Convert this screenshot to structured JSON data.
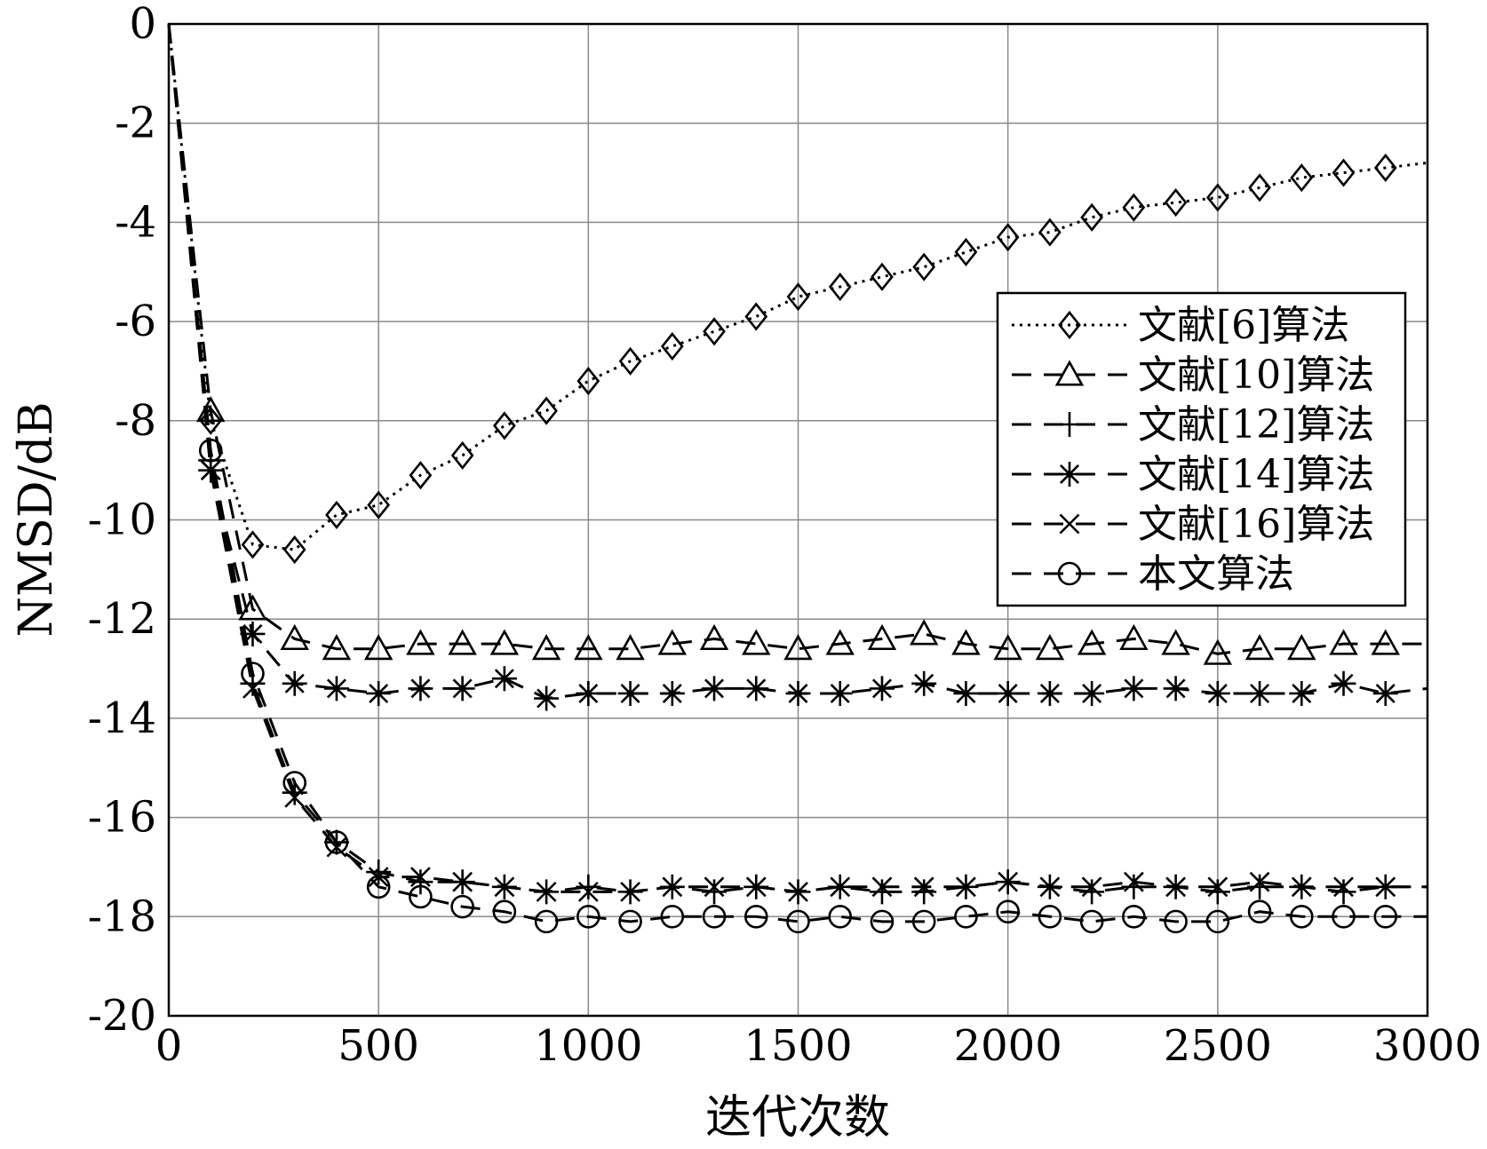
{
  "chart_data": {
    "type": "line",
    "title": "",
    "xlabel": "迭代次数",
    "ylabel": "NMSD/dB",
    "xlim": [
      0,
      3000
    ],
    "ylim": [
      -20,
      0
    ],
    "xticks": [
      0,
      500,
      1000,
      1500,
      2000,
      2500,
      3000
    ],
    "yticks": [
      0,
      -2,
      -4,
      -6,
      -8,
      -10,
      -12,
      -14,
      -16,
      -18,
      -20
    ],
    "grid": true,
    "legend_position": "right",
    "series": [
      {
        "name": "文献[6]算法",
        "style": "dotted",
        "marker": "diamond",
        "x": [
          0,
          100,
          200,
          300,
          400,
          500,
          600,
          700,
          800,
          900,
          1000,
          1100,
          1200,
          1300,
          1400,
          1500,
          1600,
          1700,
          1800,
          1900,
          2000,
          2100,
          2200,
          2300,
          2400,
          2500,
          2600,
          2700,
          2800,
          2900,
          3000
        ],
        "y": [
          0,
          -8.0,
          -10.5,
          -10.6,
          -9.9,
          -9.7,
          -9.1,
          -8.7,
          -8.1,
          -7.8,
          -7.2,
          -6.8,
          -6.5,
          -6.2,
          -5.9,
          -5.5,
          -5.3,
          -5.1,
          -4.9,
          -4.6,
          -4.3,
          -4.2,
          -3.9,
          -3.7,
          -3.6,
          -3.5,
          -3.3,
          -3.1,
          -3.0,
          -2.9,
          -2.8
        ]
      },
      {
        "name": "文献[10]算法",
        "style": "dashed",
        "marker": "triangle",
        "x": [
          0,
          100,
          200,
          300,
          400,
          500,
          600,
          700,
          800,
          900,
          1000,
          1100,
          1200,
          1300,
          1400,
          1500,
          1600,
          1700,
          1800,
          1900,
          2000,
          2100,
          2200,
          2300,
          2400,
          2500,
          2600,
          2700,
          2800,
          2900,
          3000
        ],
        "y": [
          0,
          -7.8,
          -11.8,
          -12.4,
          -12.6,
          -12.6,
          -12.5,
          -12.5,
          -12.5,
          -12.6,
          -12.6,
          -12.6,
          -12.5,
          -12.4,
          -12.5,
          -12.6,
          -12.5,
          -12.4,
          -12.3,
          -12.5,
          -12.6,
          -12.6,
          -12.5,
          -12.4,
          -12.5,
          -12.7,
          -12.6,
          -12.6,
          -12.5,
          -12.5,
          -12.5
        ]
      },
      {
        "name": "文献[12]算法",
        "style": "dashed",
        "marker": "plus",
        "x": [
          0,
          100,
          200,
          300,
          400,
          500,
          600,
          700,
          800,
          900,
          1000,
          1100,
          1200,
          1300,
          1400,
          1500,
          1600,
          1700,
          1800,
          1900,
          2000,
          2100,
          2200,
          2300,
          2400,
          2500,
          2600,
          2700,
          2800,
          2900,
          3000
        ],
        "y": [
          0,
          -8.8,
          -13.3,
          -15.5,
          -16.5,
          -17.1,
          -17.3,
          -17.3,
          -17.4,
          -17.5,
          -17.4,
          -17.5,
          -17.4,
          -17.5,
          -17.4,
          -17.5,
          -17.4,
          -17.5,
          -17.5,
          -17.4,
          -17.3,
          -17.4,
          -17.5,
          -17.4,
          -17.4,
          -17.5,
          -17.4,
          -17.4,
          -17.5,
          -17.4,
          -17.4
        ]
      },
      {
        "name": "文献[14]算法",
        "style": "dashed",
        "marker": "asterisk",
        "x": [
          0,
          100,
          200,
          300,
          400,
          500,
          600,
          700,
          800,
          900,
          1000,
          1100,
          1200,
          1300,
          1400,
          1500,
          1600,
          1700,
          1800,
          1900,
          2000,
          2100,
          2200,
          2300,
          2400,
          2500,
          2600,
          2700,
          2800,
          2900,
          3000
        ],
        "y": [
          0,
          -9.0,
          -12.3,
          -13.3,
          -13.4,
          -13.5,
          -13.4,
          -13.4,
          -13.2,
          -13.6,
          -13.5,
          -13.5,
          -13.5,
          -13.4,
          -13.4,
          -13.5,
          -13.5,
          -13.4,
          -13.3,
          -13.5,
          -13.5,
          -13.5,
          -13.5,
          -13.4,
          -13.4,
          -13.5,
          -13.5,
          -13.5,
          -13.3,
          -13.5,
          -13.4
        ]
      },
      {
        "name": "文献[16]算法",
        "style": "dashed",
        "marker": "cross",
        "x": [
          0,
          100,
          200,
          300,
          400,
          500,
          600,
          700,
          800,
          900,
          1000,
          1100,
          1200,
          1300,
          1400,
          1500,
          1600,
          1700,
          1800,
          1900,
          2000,
          2100,
          2200,
          2300,
          2400,
          2500,
          2600,
          2700,
          2800,
          2900,
          3000
        ],
        "y": [
          0,
          -9.0,
          -13.4,
          -15.6,
          -16.6,
          -17.2,
          -17.2,
          -17.3,
          -17.4,
          -17.5,
          -17.5,
          -17.5,
          -17.4,
          -17.4,
          -17.4,
          -17.5,
          -17.4,
          -17.4,
          -17.4,
          -17.4,
          -17.3,
          -17.4,
          -17.4,
          -17.3,
          -17.4,
          -17.4,
          -17.3,
          -17.4,
          -17.4,
          -17.4,
          -17.4
        ]
      },
      {
        "name": "本文算法",
        "style": "dashed",
        "marker": "circle",
        "x": [
          0,
          100,
          200,
          300,
          400,
          500,
          600,
          700,
          800,
          900,
          1000,
          1100,
          1200,
          1300,
          1400,
          1500,
          1600,
          1700,
          1800,
          1900,
          2000,
          2100,
          2200,
          2300,
          2400,
          2500,
          2600,
          2700,
          2800,
          2900,
          3000
        ],
        "y": [
          0,
          -8.6,
          -13.1,
          -15.3,
          -16.5,
          -17.4,
          -17.6,
          -17.8,
          -17.9,
          -18.1,
          -18.0,
          -18.1,
          -18.0,
          -18.0,
          -18.0,
          -18.1,
          -18.0,
          -18.1,
          -18.1,
          -18.0,
          -17.9,
          -18.0,
          -18.1,
          -18.0,
          -18.1,
          -18.1,
          -17.9,
          -18.0,
          -18.0,
          -18.0,
          -18.0
        ]
      }
    ]
  }
}
